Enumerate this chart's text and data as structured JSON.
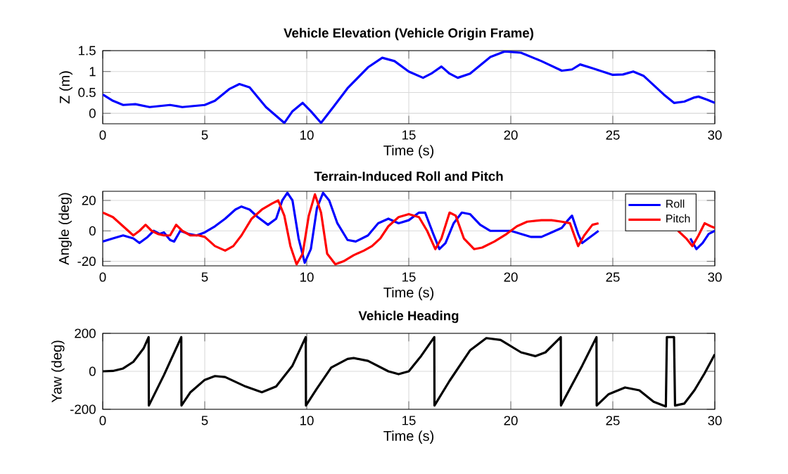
{
  "chart_data": [
    {
      "type": "line",
      "title": "Vehicle Elevation (Vehicle Origin Frame)",
      "xlabel": "Time (s)",
      "ylabel": "Z (m)",
      "xlim": [
        0,
        30
      ],
      "xticks": [
        0,
        5,
        10,
        15,
        20,
        25,
        30
      ],
      "ylim": [
        -0.25,
        1.5
      ],
      "yticks": [
        0,
        0.5,
        1,
        1.5
      ],
      "grid": true,
      "legend": false,
      "series": [
        {
          "color": "#0000ff",
          "x": [
            0,
            0.5,
            1,
            1.6,
            2.3,
            3.3,
            3.9,
            5,
            5.5,
            6.2,
            6.7,
            7.2,
            8,
            8.9,
            9.3,
            9.8,
            10.2,
            10.7,
            11.3,
            12,
            13,
            13.7,
            14.3,
            15,
            15.7,
            16.1,
            16.6,
            17,
            17.4,
            18,
            19,
            19.7,
            20.5,
            21.5,
            22.5,
            23,
            23.4,
            24,
            25,
            25.5,
            26,
            26.5,
            27.5,
            28,
            28.5,
            29,
            29.2,
            29.6,
            30
          ],
          "values": [
            0.45,
            0.3,
            0.2,
            0.22,
            0.15,
            0.2,
            0.15,
            0.2,
            0.3,
            0.58,
            0.7,
            0.62,
            0.15,
            -0.23,
            0.05,
            0.25,
            0.05,
            -0.23,
            0.15,
            0.6,
            1.1,
            1.33,
            1.25,
            1.0,
            0.85,
            0.95,
            1.12,
            0.95,
            0.85,
            0.95,
            1.35,
            1.48,
            1.45,
            1.25,
            1.02,
            1.05,
            1.17,
            1.08,
            0.92,
            0.93,
            1.0,
            0.9,
            0.45,
            0.25,
            0.28,
            0.38,
            0.4,
            0.33,
            0.25
          ]
        }
      ]
    },
    {
      "type": "line",
      "title": "Terrain-Induced Roll and Pitch",
      "xlabel": "Time (s)",
      "ylabel": "Angle (deg)",
      "xlim": [
        0,
        30
      ],
      "xticks": [
        0,
        5,
        10,
        15,
        20,
        25,
        30
      ],
      "ylim": [
        -23,
        26
      ],
      "yticks": [
        -20,
        0,
        20
      ],
      "grid": true,
      "legend": "top right",
      "series": [
        {
          "name": "Roll",
          "color": "#0000ff",
          "x": [
            0,
            0.5,
            1,
            1.5,
            1.8,
            2.2,
            2.5,
            2.8,
            3,
            3.3,
            3.5,
            3.8,
            4.2,
            4.6,
            5,
            5.5,
            6,
            6.5,
            6.8,
            7.2,
            7.6,
            8.1,
            8.5,
            8.8,
            9.05,
            9.3,
            9.6,
            9.9,
            10.2,
            10.5,
            10.8,
            11.1,
            11.5,
            12,
            12.4,
            13,
            13.5,
            14,
            14.5,
            15,
            15.5,
            15.8,
            16.2,
            16.5,
            16.8,
            17.2,
            17.6,
            18,
            18.5,
            19,
            20,
            20.5,
            21,
            21.5,
            22,
            22.5,
            22.8,
            23,
            23.3,
            23.5,
            24,
            24.3,
            25,
            26,
            27,
            28,
            28.8,
            29.1,
            29.4,
            29.7,
            30
          ],
          "values": [
            -7,
            -5,
            -3,
            -5,
            -8,
            -4,
            0,
            -2,
            -1,
            -6,
            -7,
            0,
            -2,
            -3,
            -1,
            3,
            8,
            14,
            16,
            14,
            9,
            4,
            8,
            20,
            25,
            20,
            -5,
            -21,
            -12,
            15,
            25,
            20,
            5,
            -6,
            -7,
            -3,
            5,
            8,
            5,
            7,
            12,
            12,
            -2,
            -12,
            -8,
            5,
            12,
            11,
            4,
            0,
            0,
            -2,
            -4,
            -4,
            -1,
            2,
            7,
            10,
            -2,
            -8,
            -3,
            0,
            null,
            null,
            null,
            null,
            -5,
            -12,
            -8,
            -2,
            0
          ]
        },
        {
          "name": "Pitch",
          "color": "#ff0000",
          "x": [
            0,
            0.5,
            1,
            1.5,
            1.8,
            2.1,
            2.4,
            2.7,
            3,
            3.3,
            3.6,
            3.9,
            4.3,
            4.7,
            5,
            5.5,
            6,
            6.4,
            6.8,
            7.3,
            7.8,
            8.3,
            8.6,
            8.9,
            9.2,
            9.5,
            9.8,
            10.1,
            10.4,
            10.7,
            11,
            11.4,
            11.8,
            12.3,
            12.8,
            13.2,
            13.6,
            14,
            14.5,
            15,
            15.5,
            15.9,
            16.3,
            16.6,
            17,
            17.3,
            17.7,
            18.2,
            18.6,
            19.2,
            19.8,
            20.3,
            20.8,
            21.5,
            22,
            22.5,
            22.9,
            23.3,
            23.6,
            24,
            24.3,
            25,
            28.2,
            28.6,
            28.9,
            29.2,
            29.5,
            29.8,
            30
          ],
          "values": [
            12,
            9,
            3,
            -3,
            0,
            4,
            0,
            -2,
            -3,
            -3,
            4,
            0,
            -3,
            -3,
            -4,
            -10,
            -13,
            -10,
            -3,
            8,
            14,
            18,
            20,
            10,
            -10,
            -22,
            -15,
            10,
            24,
            12,
            -15,
            -22,
            -20,
            -16,
            -13,
            -10,
            -5,
            3,
            9,
            11,
            9,
            0,
            -12,
            -5,
            12,
            10,
            -5,
            -12,
            -11,
            -7,
            -2,
            3,
            6,
            7,
            7,
            6,
            5,
            -10,
            -3,
            4,
            5,
            null,
            0,
            -5,
            -10,
            -3,
            5,
            3,
            2
          ]
        }
      ]
    },
    {
      "type": "line",
      "title": "Vehicle Heading",
      "xlabel": "Time (s)",
      "ylabel": "Yaw (deg)",
      "xlim": [
        0,
        30
      ],
      "xticks": [
        0,
        5,
        10,
        15,
        20,
        25,
        30
      ],
      "ylim": [
        -200,
        200
      ],
      "yticks": [
        -200,
        0,
        200
      ],
      "grid": true,
      "legend": false,
      "series": [
        {
          "color": "#000000",
          "x": [
            0,
            0.5,
            1,
            1.5,
            2,
            2.25,
            2.26,
            3,
            3.85,
            3.86,
            4.3,
            5,
            5.5,
            6,
            7,
            7.8,
            8.5,
            9.3,
            9.95,
            9.96,
            10.5,
            11.2,
            12,
            12.3,
            13,
            14,
            14.5,
            15,
            15.6,
            16.25,
            16.26,
            17,
            18,
            18.8,
            19.5,
            20.5,
            21.2,
            21.7,
            22.45,
            22.46,
            23.5,
            24.2,
            24.21,
            24.8,
            25.6,
            26.3,
            27,
            27.6,
            27.65,
            28,
            28.05,
            28.5,
            29,
            29.5,
            30
          ],
          "values": [
            0,
            2,
            15,
            50,
            120,
            180,
            -180,
            -20,
            180,
            -180,
            -110,
            -45,
            -25,
            -30,
            -80,
            -110,
            -80,
            30,
            180,
            -180,
            -90,
            20,
            65,
            70,
            55,
            0,
            -15,
            0,
            80,
            180,
            -180,
            -50,
            110,
            175,
            165,
            100,
            80,
            100,
            180,
            -180,
            30,
            180,
            -180,
            -120,
            -85,
            -100,
            -160,
            -185,
            180,
            180,
            -180,
            -170,
            -100,
            -10,
            90
          ]
        }
      ]
    }
  ]
}
